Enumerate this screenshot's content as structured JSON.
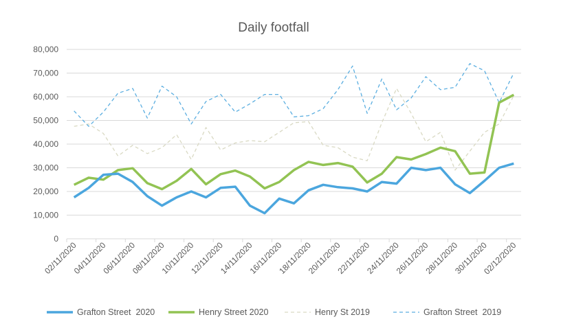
{
  "chart_data": {
    "type": "line",
    "title": "Daily footfall",
    "xlabel": "",
    "ylabel": "",
    "ylim": [
      0,
      80000
    ],
    "yticks": [
      0,
      10000,
      20000,
      30000,
      40000,
      50000,
      60000,
      70000,
      80000
    ],
    "ytick_labels": [
      "0",
      "10,000",
      "20,000",
      "30,000",
      "40,000",
      "50,000",
      "60,000",
      "70,000",
      "80,000"
    ],
    "grid": true,
    "legend_position": "bottom",
    "x": [
      "02/11/2020",
      "03/11/2020",
      "04/11/2020",
      "05/11/2020",
      "06/11/2020",
      "07/11/2020",
      "08/11/2020",
      "09/11/2020",
      "10/11/2020",
      "11/11/2020",
      "12/11/2020",
      "13/11/2020",
      "14/11/2020",
      "15/11/2020",
      "16/11/2020",
      "17/11/2020",
      "18/11/2020",
      "19/11/2020",
      "20/11/2020",
      "21/11/2020",
      "22/11/2020",
      "23/11/2020",
      "24/11/2020",
      "25/11/2020",
      "26/11/2020",
      "27/11/2020",
      "28/11/2020",
      "29/11/2020",
      "30/11/2020",
      "01/12/2020",
      "02/12/2020"
    ],
    "xtick_labels": [
      "02/11/2020",
      "04/11/2020",
      "06/11/2020",
      "08/11/2020",
      "10/11/2020",
      "12/11/2020",
      "14/11/2020",
      "16/11/2020",
      "18/11/2020",
      "20/11/2020",
      "22/11/2020",
      "24/11/2020",
      "26/11/2020",
      "28/11/2020",
      "30/11/2020",
      "02/12/2020"
    ],
    "series": [
      {
        "name": "Grafton Street  2020",
        "color": "#4BA6DE",
        "style": "solid",
        "values": [
          17500,
          21500,
          27000,
          27500,
          24000,
          18000,
          14000,
          17500,
          20000,
          17500,
          21500,
          22000,
          14000,
          10800,
          17000,
          15000,
          20500,
          22800,
          21800,
          21300,
          20000,
          24000,
          23300,
          30000,
          29000,
          30000,
          23000,
          19300,
          24500,
          30000,
          31800
        ]
      },
      {
        "name": "Henry Street 2020",
        "color": "#92C353",
        "style": "solid",
        "values": [
          22800,
          25800,
          25000,
          29000,
          29800,
          23500,
          21000,
          24500,
          29500,
          23000,
          27300,
          28800,
          26300,
          21300,
          24000,
          29000,
          32500,
          31200,
          32000,
          30500,
          23800,
          27500,
          34500,
          33500,
          35800,
          38500,
          37000,
          27500,
          28000,
          57500,
          60800
        ]
      },
      {
        "name": "Henry St 2019",
        "color": "#D9D9C3",
        "style": "dashed",
        "values": [
          47500,
          48500,
          44500,
          35000,
          39500,
          36000,
          38500,
          44000,
          33500,
          47000,
          37500,
          40500,
          41500,
          41000,
          45000,
          49000,
          49500,
          39500,
          38500,
          34500,
          33000,
          49000,
          63500,
          53000,
          41000,
          45000,
          29000,
          37000,
          45000,
          48500,
          60500
        ]
      },
      {
        "name": "Grafton Street  2019",
        "color": "#5BAEE0",
        "style": "dashed",
        "values": [
          54000,
          47500,
          53500,
          61500,
          63500,
          51000,
          64500,
          60000,
          48500,
          58000,
          61000,
          53500,
          57000,
          61000,
          61000,
          51500,
          52000,
          55000,
          63000,
          73000,
          53000,
          67500,
          54500,
          59500,
          68500,
          63000,
          64000,
          74000,
          71000,
          57500,
          70000
        ]
      }
    ]
  }
}
